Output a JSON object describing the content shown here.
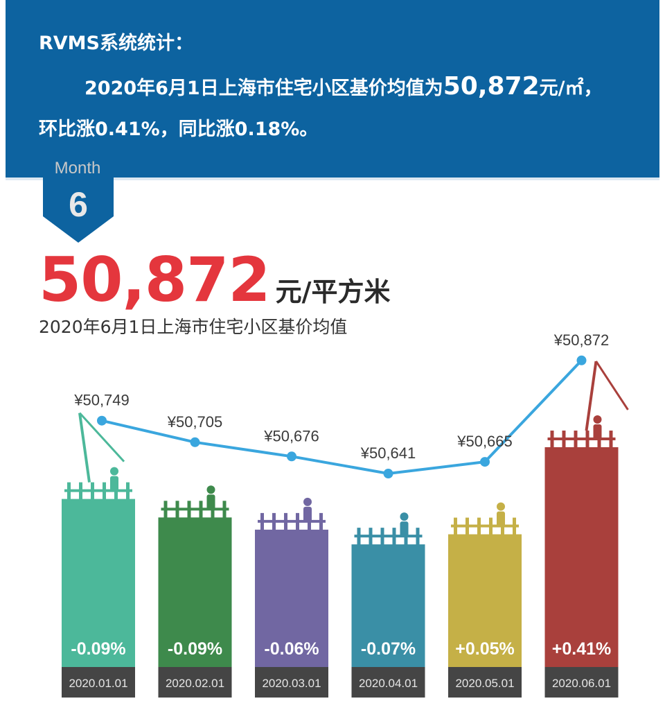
{
  "header": {
    "title": "RVMS系统统计：",
    "line1_pre": "2020年6月1日上海市住宅小区基价均值为",
    "line1_value": "50,872",
    "line1_unit": "元/㎡，",
    "line2": "环比涨0.41%，同比涨0.18%。"
  },
  "badge": {
    "label": "Month",
    "number": "6"
  },
  "headline": {
    "value": "50,872",
    "unit": "元/平方米",
    "subtitle": "2020年6月1日上海市住宅小区基价均值"
  },
  "colors": {
    "header_bg": "#0d63a0",
    "headline_red": "#e4363d",
    "line": "#3aa6de",
    "bars": [
      "#4cb89a",
      "#3e8a4c",
      "#7167a2",
      "#3a8fa6",
      "#c5b047",
      "#a9403c"
    ],
    "date_bg": "#454545"
  },
  "chart_data": {
    "type": "bar",
    "categories": [
      "2020.01.01",
      "2020.02.01",
      "2020.03.01",
      "2020.04.01",
      "2020.05.01",
      "2020.06.01"
    ],
    "series": [
      {
        "values": [
          50749,
          50705,
          50676,
          50641,
          50665,
          50872
        ],
        "labels": [
          "¥50,749",
          "¥50,705",
          "¥50,676",
          "¥50,641",
          "¥50,665",
          "¥50,872"
        ]
      }
    ],
    "changes": [
      "-0.09%",
      "-0.09%",
      "-0.06%",
      "-0.07%",
      "+0.05%",
      "+0.41%"
    ],
    "overlay": "line"
  }
}
